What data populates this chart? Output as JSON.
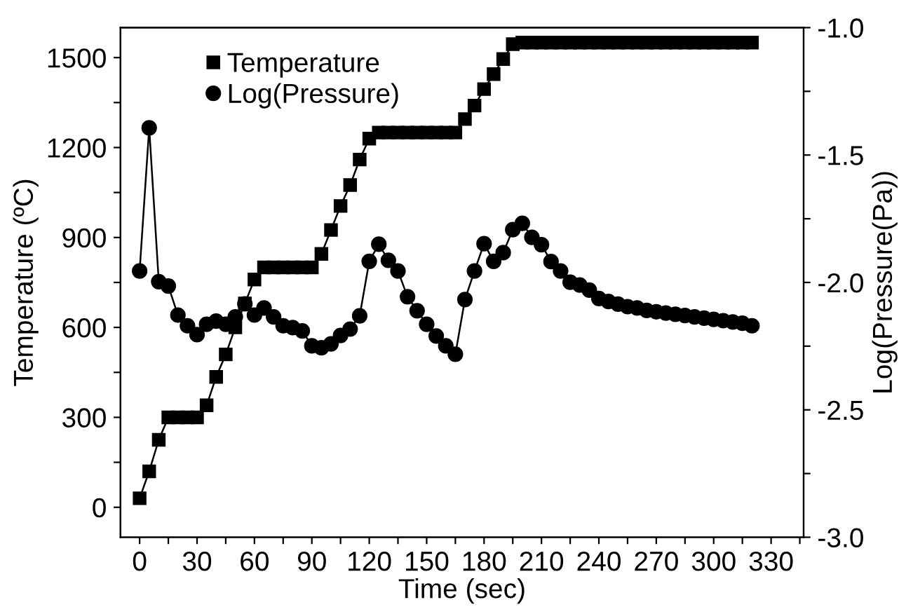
{
  "chart_data": {
    "type": "line",
    "xlabel": "Time (sec)",
    "ylabel": "Temperature (ºC)",
    "y2label": "Log(Pressure(Pa))",
    "x": [
      0,
      5,
      10,
      15,
      20,
      25,
      30,
      35,
      40,
      45,
      50,
      55,
      60,
      65,
      70,
      75,
      80,
      85,
      90,
      95,
      100,
      105,
      110,
      115,
      120,
      125,
      130,
      135,
      140,
      145,
      150,
      155,
      160,
      165,
      170,
      175,
      180,
      185,
      190,
      195,
      200,
      205,
      210,
      215,
      220,
      225,
      230,
      235,
      240,
      245,
      250,
      255,
      260,
      265,
      270,
      275,
      280,
      285,
      290,
      295,
      300,
      305,
      310,
      315,
      320
    ],
    "series": [
      {
        "name": "Temperature",
        "color": "#000000",
        "marker": "square",
        "values": [
          30,
          120,
          225,
          300,
          300,
          300,
          300,
          340,
          435,
          510,
          600,
          680,
          760,
          800,
          800,
          800,
          800,
          800,
          800,
          845,
          925,
          1005,
          1075,
          1160,
          1230,
          1250,
          1250,
          1250,
          1250,
          1250,
          1250,
          1250,
          1250,
          1250,
          1295,
          1340,
          1395,
          1445,
          1495,
          1545,
          1550,
          1550,
          1550,
          1550,
          1550,
          1550,
          1550,
          1550,
          1550,
          1550,
          1550,
          1550,
          1550,
          1550,
          1550,
          1550,
          1550,
          1550,
          1550,
          1550,
          1550,
          1550,
          1550,
          1550,
          1550
        ]
      },
      {
        "name": "Log(Pressure)",
        "color": "#000000",
        "marker": "circle",
        "axis": "y2",
        "values": [
          -1.955,
          -1.393,
          -1.997,
          -2.014,
          -2.128,
          -2.17,
          -2.205,
          -2.164,
          -2.152,
          -2.164,
          -2.135,
          -2.084,
          -2.128,
          -2.1,
          -2.135,
          -2.17,
          -2.177,
          -2.19,
          -2.249,
          -2.256,
          -2.241,
          -2.208,
          -2.183,
          -2.131,
          -1.917,
          -1.85,
          -1.913,
          -1.955,
          -2.056,
          -2.111,
          -2.164,
          -2.21,
          -2.249,
          -2.282,
          -2.067,
          -1.955,
          -1.848,
          -1.917,
          -1.883,
          -1.793,
          -1.768,
          -1.823,
          -1.852,
          -1.918,
          -1.955,
          -1.999,
          -2.01,
          -2.03,
          -2.063,
          -2.075,
          -2.085,
          -2.095,
          -2.1,
          -2.11,
          -2.115,
          -2.12,
          -2.125,
          -2.13,
          -2.135,
          -2.14,
          -2.145,
          -2.15,
          -2.155,
          -2.16,
          -2.17
        ]
      }
    ],
    "xlim": [
      -10,
      347
    ],
    "ylim": [
      -100,
      1600
    ],
    "y2lim": [
      -3.0,
      -1.0
    ],
    "xticks": [
      0,
      {
        "value": 15,
        "label": null
      },
      30,
      {
        "value": 45,
        "label": null
      },
      60,
      {
        "value": 75,
        "label": null
      },
      90,
      {
        "value": 105,
        "label": null
      },
      120,
      {
        "value": 135,
        "label": null
      },
      150,
      {
        "value": 165,
        "label": null
      },
      180,
      {
        "value": 195,
        "label": null
      },
      210,
      {
        "value": 225,
        "label": null
      },
      240,
      {
        "value": 255,
        "label": null
      },
      270,
      {
        "value": 285,
        "label": null
      },
      300,
      {
        "value": 315,
        "label": null
      },
      330,
      {
        "value": 345,
        "label": null
      }
    ],
    "yticks": [
      0,
      {
        "value": 150,
        "label": null
      },
      300,
      {
        "value": 450,
        "label": null
      },
      600,
      {
        "value": 750,
        "label": null
      },
      900,
      {
        "value": 1050,
        "label": null
      },
      1200,
      {
        "value": 1350,
        "label": null
      },
      1500
    ],
    "y2ticks": [
      {
        "value": -3.0,
        "label": "-3.0"
      },
      {
        "value": -2.75,
        "label": null
      },
      {
        "value": -2.5,
        "label": "-2.5"
      },
      {
        "value": -2.25,
        "label": null
      },
      {
        "value": -2.0,
        "label": "-2.0"
      },
      {
        "value": -1.75,
        "label": null
      },
      {
        "value": -1.5,
        "label": "-1.5"
      },
      {
        "value": -1.25,
        "label": null
      },
      {
        "value": -1.0,
        "label": "-1.0"
      }
    ],
    "legend": "top left",
    "grid": false,
    "line_style": "solid"
  }
}
